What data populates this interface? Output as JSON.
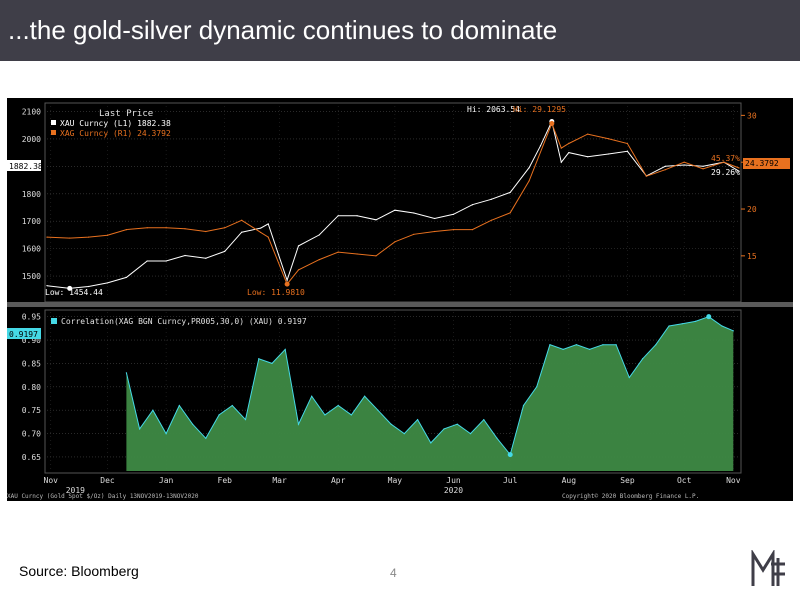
{
  "slide": {
    "title": "...the gold-silver dynamic continues to dominate",
    "source": "Source: Bloomberg",
    "page_number": "4"
  },
  "colors": {
    "title_bg": "#3f3e48",
    "gold": "#ffffff",
    "silver": "#e8711f",
    "corr_line": "#45d9e6",
    "corr_fill": "#3e8a44",
    "logo": "#3f3e48"
  },
  "chart_data": [
    {
      "type": "line",
      "legend_header": "Last Price",
      "legend": [
        {
          "label": "XAU Curncy  (L1) 1882.38",
          "color": "#ffffff"
        },
        {
          "label": "XAG Curncy  (R1)   24.3792",
          "color": "#e8711f"
        }
      ],
      "left_axis": {
        "ticks": [
          "2100",
          "2000",
          "1900",
          "1800",
          "1700",
          "1600",
          "1500"
        ],
        "ylim": [
          1420,
          2120
        ]
      },
      "right_axis": {
        "ticks": [
          "30",
          "25",
          "20",
          "15"
        ],
        "ylim": [
          10.5,
          31
        ]
      },
      "series": [
        {
          "name": "XAU Curncy",
          "axis": "left",
          "color": "#ffffff",
          "x": [
            "2019-11-13",
            "2019-11-25",
            "2019-12-05",
            "2019-12-15",
            "2019-12-25",
            "2020-01-05",
            "2020-01-15",
            "2020-01-25",
            "2020-02-05",
            "2020-02-15",
            "2020-02-24",
            "2020-03-05",
            "2020-03-09",
            "2020-03-19",
            "2020-03-25",
            "2020-04-05",
            "2020-04-15",
            "2020-04-25",
            "2020-05-05",
            "2020-05-15",
            "2020-05-25",
            "2020-06-05",
            "2020-06-15",
            "2020-06-25",
            "2020-07-05",
            "2020-07-15",
            "2020-07-25",
            "2020-07-31",
            "2020-08-06",
            "2020-08-11",
            "2020-08-15",
            "2020-08-25",
            "2020-09-05",
            "2020-09-15",
            "2020-09-25",
            "2020-10-05",
            "2020-10-15",
            "2020-10-25",
            "2020-11-05",
            "2020-11-13"
          ],
          "y": [
            1465,
            1455,
            1462,
            1475,
            1495,
            1555,
            1555,
            1575,
            1565,
            1590,
            1660,
            1675,
            1690,
            1485,
            1610,
            1650,
            1720,
            1720,
            1705,
            1740,
            1730,
            1710,
            1725,
            1760,
            1780,
            1805,
            1895,
            1975,
            2063.54,
            1915,
            1950,
            1935,
            1945,
            1955,
            1865,
            1900,
            1905,
            1900,
            1915,
            1882.38
          ]
        },
        {
          "name": "XAG Curncy",
          "axis": "right",
          "color": "#e8711f",
          "x": [
            "2019-11-13",
            "2019-11-25",
            "2019-12-05",
            "2019-12-15",
            "2019-12-25",
            "2020-01-05",
            "2020-01-15",
            "2020-01-25",
            "2020-02-05",
            "2020-02-15",
            "2020-02-24",
            "2020-03-05",
            "2020-03-09",
            "2020-03-19",
            "2020-03-25",
            "2020-04-05",
            "2020-04-15",
            "2020-04-25",
            "2020-05-05",
            "2020-05-15",
            "2020-05-25",
            "2020-06-05",
            "2020-06-15",
            "2020-06-25",
            "2020-07-05",
            "2020-07-15",
            "2020-07-25",
            "2020-08-06",
            "2020-08-11",
            "2020-08-15",
            "2020-08-25",
            "2020-09-05",
            "2020-09-15",
            "2020-09-25",
            "2020-10-05",
            "2020-10-15",
            "2020-10-25",
            "2020-11-05",
            "2020-11-13"
          ],
          "y": [
            17.0,
            16.9,
            17.0,
            17.2,
            17.8,
            18.0,
            18.0,
            17.9,
            17.6,
            18.0,
            18.8,
            17.5,
            17.0,
            11.981,
            13.5,
            14.6,
            15.4,
            15.2,
            15.0,
            16.5,
            17.3,
            17.6,
            17.8,
            17.8,
            18.8,
            19.6,
            23.0,
            29.1295,
            26.5,
            27.0,
            28.0,
            27.5,
            27.0,
            23.5,
            24.2,
            25.0,
            24.3,
            25.0,
            24.3792
          ]
        }
      ],
      "annotations": {
        "gold_high": "Hi: 2063.54",
        "silver_high": "Hi: 29.1295",
        "gold_low": "Low: 1454.44",
        "silver_low": "Low: 11.9810",
        "gold_last_tag": "1882.38",
        "silver_last_tag": "24.3792",
        "ratio_last": "45.37%",
        "corr_last_small": "29.26%"
      }
    },
    {
      "type": "area",
      "legend": "Correlation(XAG BGN Curncy,PR005,30,0) (XAU) 0.9197",
      "last_tag": "0.9197",
      "left_axis": {
        "ticks": [
          "0.95",
          "0.90",
          "0.85",
          "0.80",
          "0.75",
          "0.70",
          "0.65"
        ],
        "ylim": [
          0.62,
          0.96
        ]
      },
      "x_axis": {
        "month_labels": [
          "Nov",
          "Dec",
          "Jan",
          "Feb",
          "Mar",
          "Apr",
          "May",
          "Jun",
          "Jul",
          "Aug",
          "Sep",
          "Oct",
          "Nov"
        ],
        "year_labels": [
          "2019",
          "2020"
        ]
      },
      "series": [
        {
          "name": "Correlation",
          "x": [
            "2019-12-25",
            "2020-01-01",
            "2020-01-08",
            "2020-01-15",
            "2020-01-22",
            "2020-01-29",
            "2020-02-05",
            "2020-02-12",
            "2020-02-19",
            "2020-02-26",
            "2020-03-04",
            "2020-03-11",
            "2020-03-18",
            "2020-03-25",
            "2020-04-01",
            "2020-04-08",
            "2020-04-15",
            "2020-04-22",
            "2020-04-29",
            "2020-05-06",
            "2020-05-13",
            "2020-05-20",
            "2020-05-27",
            "2020-06-03",
            "2020-06-10",
            "2020-06-17",
            "2020-06-24",
            "2020-07-01",
            "2020-07-08",
            "2020-07-15",
            "2020-07-22",
            "2020-07-29",
            "2020-08-05",
            "2020-08-12",
            "2020-08-19",
            "2020-08-26",
            "2020-09-02",
            "2020-09-09",
            "2020-09-16",
            "2020-09-23",
            "2020-09-30",
            "2020-10-07",
            "2020-10-14",
            "2020-10-21",
            "2020-10-28",
            "2020-11-04",
            "2020-11-10"
          ],
          "y": [
            0.83,
            0.71,
            0.75,
            0.7,
            0.76,
            0.72,
            0.69,
            0.74,
            0.76,
            0.73,
            0.86,
            0.85,
            0.88,
            0.72,
            0.78,
            0.74,
            0.76,
            0.74,
            0.78,
            0.75,
            0.72,
            0.7,
            0.73,
            0.68,
            0.71,
            0.72,
            0.7,
            0.73,
            0.69,
            0.655,
            0.76,
            0.8,
            0.89,
            0.88,
            0.89,
            0.88,
            0.89,
            0.89,
            0.82,
            0.86,
            0.89,
            0.93,
            0.935,
            0.94,
            0.95,
            0.93,
            0.9197
          ]
        }
      ],
      "annotations": {
        "low_marker": "",
        "high_marker": ""
      }
    }
  ],
  "footer_left": "XAU Curncy (Gold Spot $/Oz) Daily 13NOV2019-13NOV2020",
  "footer_right": "Copyright© 2020 Bloomberg Finance L.P."
}
